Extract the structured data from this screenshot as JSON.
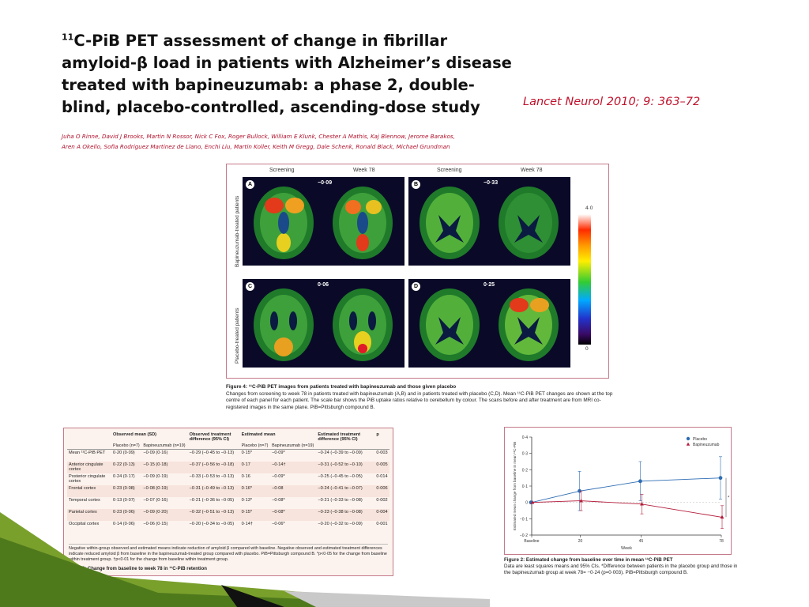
{
  "slide": {
    "title": "C-PiB PET assessment of change in fibrillar amyloid-β load in patients with Alzheimer’s disease treated with bapineuzumab: a phase 2, double-blind, placebo-controlled, ascending-dose study",
    "title_superscript": "11",
    "citation": "Lancet Neurol 2010; 9: 363–72",
    "authors": [
      "Juha O Rinne, David J Brooks, Martin N Rossor, Nick C Fox, Roger Bullock, William E Klunk, Chester A Mathis, Kaj Blennow, Jerome Barakos,",
      "Aren A Okello, Sofia Rodriguez Martinez de Llano, Enchi Liu, Martin Koller, Keith M Gregg, Dale Schenk, Ronald Black, Michael Grundman"
    ]
  },
  "figure4": {
    "col_labels": [
      "Screening",
      "Week 78",
      "Screening",
      "Week 78"
    ],
    "row_labels": [
      "Bapineuzumab-treated patients",
      "Placebo-treated patients"
    ],
    "panels": [
      {
        "letter": "A",
        "change": "−0·09"
      },
      {
        "letter": "B",
        "change": "−0·33"
      },
      {
        "letter": "C",
        "change": "0·06"
      },
      {
        "letter": "D",
        "change": "0·25"
      }
    ],
    "scale_max": "4·0",
    "scale_min": "0",
    "caption_title": "Figure 4: ¹¹C-PiB PET images from patients treated with bapineuzumab and those given placebo",
    "caption_body": "Changes from screening to week 78 in patients treated with bapineuzumab (A,B) and in patients treated with placebo (C,D). Mean ¹¹C-PiB PET changes are shown at the top centre of each panel for each patient. The scale bar shows the PiB uptake ratios relative to cerebellum by colour. The scans before and after treatment are from MRI co-registered images in the same plane. PiB=Pittsburgh compound B."
  },
  "table2": {
    "headers": [
      "",
      "Observed mean (SD)",
      "Observed treatment difference (95% CI)",
      "Estimated mean",
      "Estimated treatment difference (95% CI)",
      "p"
    ],
    "subheaders": [
      "",
      "Placebo (n=7)",
      "Bapineuzumab (n=19)",
      "",
      "Placebo (n=7)",
      "Bapineuzumab (n=19)",
      "",
      ""
    ],
    "rows": [
      [
        "Mean ¹¹C-PiB PET",
        "0·20 (0·09)",
        "−0·09 (0·16)",
        "−0·29 (−0·45 to −0·13)",
        "0·15*",
        "−0·09*",
        "−0·24 (−0·39 to −0·09)",
        "0·003"
      ],
      [
        "Anterior cingulate cortex",
        "0·22 (0·13)",
        "−0·15 (0·18)",
        "−0·37 (−0·56 to −0·18)",
        "0·17",
        "−0·14†",
        "−0·31 (−0·52 to −0·10)",
        "0·005"
      ],
      [
        "Posterior cingulate cortex",
        "0·24 (0·17)",
        "−0·09 (0·19)",
        "−0·33 (−0·53 to −0·13)",
        "0·16",
        "−0·09*",
        "−0·25 (−0·45 to −0·05)",
        "0·014"
      ],
      [
        "Frontal cortex",
        "0·23 (0·08)",
        "−0·08 (0·19)",
        "−0·31 (−0·49 to −0·13)",
        "0·16*",
        "−0·08",
        "−0·24 (−0·41 to −0·07)",
        "0·006"
      ],
      [
        "Temporal cortex",
        "0·13 (0·07)",
        "−0·07 (0·16)",
        "−0·21 (−0·36 to −0·05)",
        "0·13*",
        "−0·08*",
        "−0·21 (−0·33 to −0·08)",
        "0·002"
      ],
      [
        "Parietal cortex",
        "0·23 (0·06)",
        "−0·09 (0·20)",
        "−0·32 (−0·51 to −0·13)",
        "0·15*",
        "−0·08*",
        "−0·23 (−0·38 to −0·08)",
        "0·004"
      ],
      [
        "Occipital cortex",
        "0·14 (0·06)",
        "−0·06 (0·15)",
        "−0·20 (−0·34 to −0·05)",
        "0·14†",
        "−0·06*",
        "−0·20 (−0·32 to −0·09)",
        "0·001"
      ]
    ],
    "note": "Negative within-group observed and estimated means indicate reduction of amyloid β compared with baseline. Negative observed and estimated treatment differences indicate reduced amyloid β from baseline in the bapineuzumab-treated group compared with placebo. PiB=Pittsburgh compound B. *p<0·05 for the change from baseline within treatment group. †p<0·01 for the change from baseline within treatment group.",
    "caption": "Table 2: Change from baseline to week 78 in ¹¹C-PiB retention"
  },
  "figure2": {
    "caption_title": "Figure 2: Estimated change from baseline over time in mean ¹¹C-PiB PET",
    "caption_body": "Data are least squares means and 95% CIs. *Difference between patients in the placebo group and those in the bapineuzumab group at week 78= −0·24 (p=0·003). PiB=Pittsburgh compound B.",
    "chart_data": {
      "type": "line",
      "x": [
        "Baseline",
        "20",
        "45",
        "78"
      ],
      "x_numeric": [
        0,
        20,
        45,
        78
      ],
      "xlabel": "Week",
      "ylabel": "Estimated mean change from baseline in mean ¹¹C-PiB",
      "ylim": [
        -0.2,
        0.4
      ],
      "yticks": [
        "0·4",
        "0·3",
        "0·2",
        "0·1",
        "0",
        "−0·1",
        "−0·2"
      ],
      "legend_position": "top-right",
      "annotation": "*",
      "series": [
        {
          "name": "Placebo",
          "color": "#2e6db3",
          "marker": "circle",
          "values": [
            0,
            0.07,
            0.13,
            0.15
          ],
          "ci_low": [
            0,
            -0.05,
            0.01,
            0.02
          ],
          "ci_high": [
            0,
            0.19,
            0.25,
            0.28
          ]
        },
        {
          "name": "Bapineuzumab",
          "color": "#b31b3a",
          "marker": "triangle",
          "values": [
            0,
            0.01,
            -0.01,
            -0.09
          ],
          "ci_low": [
            0,
            -0.05,
            -0.07,
            -0.16
          ],
          "ci_high": [
            0,
            0.07,
            0.05,
            -0.02
          ]
        }
      ]
    }
  }
}
